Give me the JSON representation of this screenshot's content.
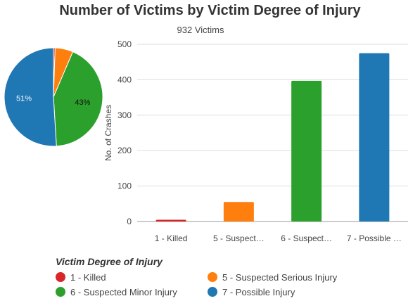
{
  "chart_data": [
    {
      "type": "pie",
      "title": "Number of Victims by Victim Degree of Injury",
      "subtitle": "932 Victims",
      "categories": [
        "1 - Killed",
        "5 - Suspected Serious Injury",
        "6 - Suspected Minor Injury",
        "7 - Possible Injury"
      ],
      "values": [
        5,
        55,
        397,
        475
      ],
      "slice_labels": [
        "",
        "",
        "43%",
        "51%"
      ],
      "colors": [
        "#d62728",
        "#ff7f0e",
        "#2ca02c",
        "#1f77b4"
      ]
    },
    {
      "type": "bar",
      "categories": [
        "1 - Killed",
        "5 - Suspect…",
        "6 - Suspect…",
        "7 - Possible …"
      ],
      "values": [
        5,
        55,
        397,
        475
      ],
      "colors": [
        "#d62728",
        "#ff7f0e",
        "#2ca02c",
        "#1f77b4"
      ],
      "xlabel": "",
      "ylabel": "No. of Crashes",
      "ylim": [
        0,
        500
      ],
      "yticks": [
        0,
        100,
        200,
        300,
        400,
        500
      ],
      "grid": true
    }
  ],
  "legend": {
    "title": "Victim Degree of Injury",
    "placement": "bottom",
    "items": [
      {
        "label": "1 - Killed",
        "color": "#d62728"
      },
      {
        "label": "5 - Suspected Serious Injury",
        "color": "#ff7f0e"
      },
      {
        "label": "6 - Suspected Minor Injury",
        "color": "#2ca02c"
      },
      {
        "label": "7 - Possible Injury",
        "color": "#1f77b4"
      }
    ]
  }
}
